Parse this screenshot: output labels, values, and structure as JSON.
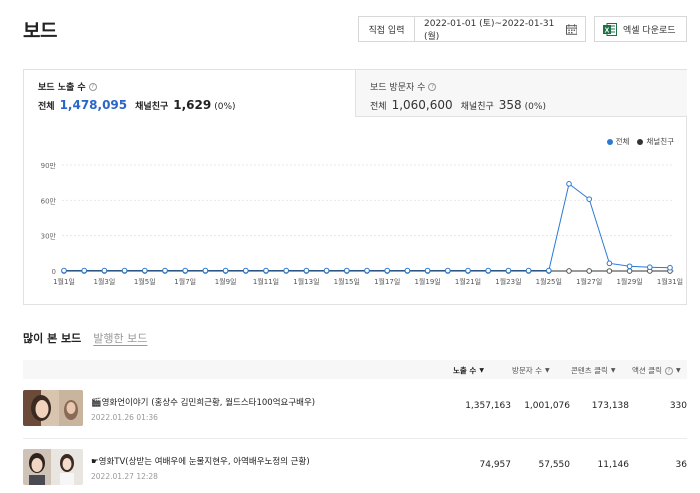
{
  "header": {
    "title": "보드",
    "direct_input": "직접 입력",
    "date_range": "2022-01-01 (토)~2022-01-31 (월)",
    "excel_download": "엑셀 다운로드"
  },
  "stats": {
    "impressions": {
      "title": "보드 노출 수",
      "total_label": "전체",
      "total_value": "1,478,095",
      "channel_label": "채널친구",
      "channel_value": "1,629",
      "channel_pct": "(0%)"
    },
    "visitors": {
      "title": "보드 방문자 수",
      "total_label": "전체",
      "total_value": "1,060,600",
      "channel_label": "채널친구",
      "channel_value": "358",
      "channel_pct": "(0%)"
    }
  },
  "chart_data": {
    "type": "line",
    "legend": [
      "전체",
      "채널친구"
    ],
    "legend_position": "top-right",
    "colors": {
      "total": "#2a7ad5",
      "channel": "#333333"
    },
    "y_ticks": [
      "0",
      "30만",
      "60만",
      "90만"
    ],
    "ylim": [
      0,
      900000
    ],
    "x_tick_labels": [
      "1월1일",
      "1월3일",
      "1월5일",
      "1월7일",
      "1월9일",
      "1월11일",
      "1월13일",
      "1월15일",
      "1월17일",
      "1월19일",
      "1월21일",
      "1월23일",
      "1월25일",
      "1월27일",
      "1월29일",
      "1월31일"
    ],
    "x": [
      1,
      2,
      3,
      4,
      5,
      6,
      7,
      8,
      9,
      10,
      11,
      12,
      13,
      14,
      15,
      16,
      17,
      18,
      19,
      20,
      21,
      22,
      23,
      24,
      25,
      26,
      27,
      28,
      29,
      30,
      31
    ],
    "series": [
      {
        "name": "전체",
        "values": [
          4000,
          4000,
          4000,
          4000,
          4000,
          4000,
          4000,
          4000,
          4000,
          4000,
          4000,
          4000,
          4000,
          4000,
          4000,
          4000,
          4000,
          4000,
          4000,
          4000,
          4000,
          4000,
          4000,
          4000,
          4000,
          740000,
          610000,
          65000,
          40000,
          32000,
          28000
        ]
      },
      {
        "name": "채널친구",
        "values": [
          0,
          0,
          0,
          0,
          0,
          0,
          0,
          0,
          0,
          0,
          0,
          0,
          0,
          0,
          0,
          0,
          0,
          0,
          0,
          0,
          0,
          0,
          0,
          0,
          0,
          200,
          200,
          100,
          100,
          100,
          100
        ]
      }
    ]
  },
  "sections": {
    "active": "많이 본 보드",
    "other": "발행한 보드"
  },
  "table": {
    "columns": [
      "노출 수",
      "방문자 수",
      "콘텐츠 클릭",
      "액션 클릭"
    ],
    "rows": [
      {
        "title": "🎬영화언이야기 (홍상수 김민희근황, 월드스타100억요구배우)",
        "date": "2022.01.26 01:36",
        "impressions": "1,357,163",
        "visitors": "1,001,076",
        "content_clicks": "173,138",
        "action_clicks": "330"
      },
      {
        "title": "☛영화TV(상받는 여배우에 눈물지현우, 아역배우노정의 근황)",
        "date": "2022.01.27 12:28",
        "impressions": "74,957",
        "visitors": "57,550",
        "content_clicks": "11,146",
        "action_clicks": "36"
      }
    ]
  }
}
